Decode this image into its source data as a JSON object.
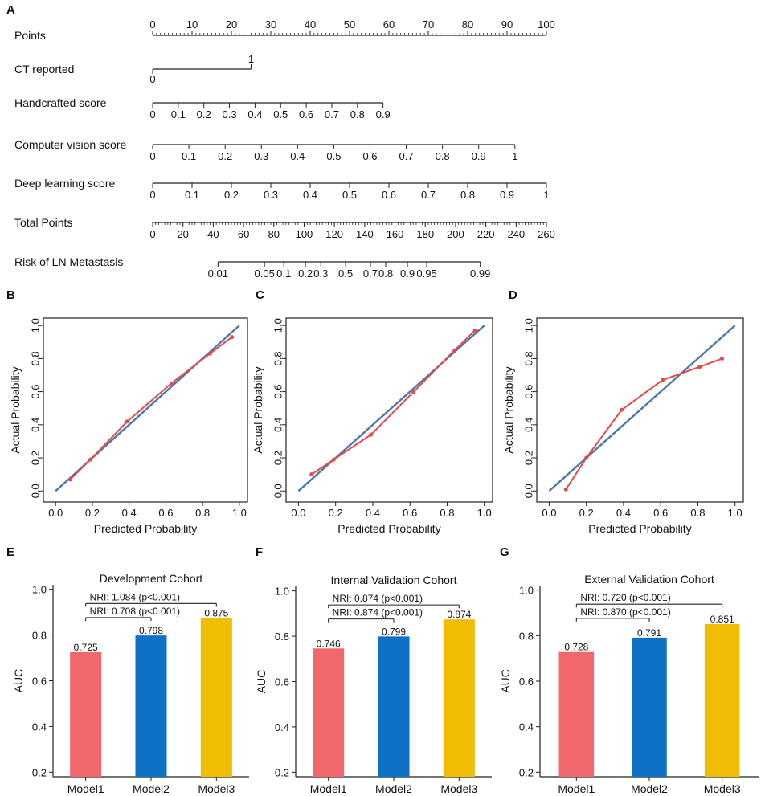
{
  "colors": {
    "calibration_line": "#e8474c",
    "diagonal_line": "#4a78ae",
    "model1": "#f0686b",
    "model2": "#0d72c5",
    "model3": "#f0bd05",
    "axis": "#222222"
  },
  "chart_data": [
    {
      "panel": "A",
      "type": "nomogram",
      "rows": [
        {
          "label": "Points",
          "ticks": [
            "0",
            "10",
            "20",
            "30",
            "40",
            "50",
            "60",
            "70",
            "80",
            "90",
            "100"
          ],
          "tick_values": [
            0,
            10,
            20,
            30,
            40,
            50,
            60,
            70,
            80,
            90,
            100
          ],
          "minor_step": 1
        },
        {
          "label": "CT reported",
          "ticks": [
            "0",
            "1"
          ],
          "tick_values": [
            0,
            25
          ],
          "step_style": true
        },
        {
          "label": "Handcrafted score",
          "ticks": [
            "0",
            "0.1",
            "0.2",
            "0.3",
            "0.4",
            "0.5",
            "0.6",
            "0.7",
            "0.8",
            "0.9"
          ],
          "tick_values": [
            0,
            6.5,
            13,
            19.5,
            26,
            32.5,
            39,
            45.5,
            52,
            58.5
          ]
        },
        {
          "label": "Computer vision score",
          "ticks": [
            "0",
            "0.1",
            "0.2",
            "0.3",
            "0.4",
            "0.5",
            "0.6",
            "0.7",
            "0.8",
            "0.9",
            "1"
          ],
          "tick_values": [
            0,
            9.2,
            18.4,
            27.6,
            36.8,
            46,
            55.2,
            64.4,
            73.6,
            82.8,
            92
          ]
        },
        {
          "label": "Deep learning score",
          "ticks": [
            "0",
            "0.1",
            "0.2",
            "0.3",
            "0.4",
            "0.5",
            "0.6",
            "0.7",
            "0.8",
            "0.9",
            "1"
          ],
          "tick_values": [
            0,
            10,
            20,
            30,
            40,
            50,
            60,
            70,
            80,
            90,
            100
          ]
        },
        {
          "label": "Total Points",
          "ticks": [
            "0",
            "20",
            "40",
            "60",
            "80",
            "100",
            "120",
            "140",
            "160",
            "180",
            "200",
            "220",
            "240",
            "260"
          ],
          "tick_values": [
            0,
            7.69,
            15.38,
            23.08,
            30.77,
            38.46,
            46.15,
            53.85,
            61.54,
            69.23,
            76.92,
            84.62,
            92.31,
            100
          ],
          "minor_step": 1
        },
        {
          "label": "Risk of LN Metastasis",
          "ticks": [
            "0.01",
            "0.05",
            "0.1",
            "0.2",
            "0.3",
            "0.5",
            "0.7",
            "0.8",
            "0.9",
            "0.95",
            "0.99"
          ],
          "tick_values": [
            16.6,
            28.4,
            33.3,
            38.8,
            42.7,
            49.0,
            55.3,
            59.2,
            64.7,
            69.6,
            83.2
          ]
        }
      ]
    },
    {
      "panel": "B",
      "type": "line",
      "xlabel": "Predicted  Probability",
      "ylabel": "Actual Probability",
      "xlim": [
        0,
        1
      ],
      "ylim": [
        0,
        1
      ],
      "xticks": [
        "0.0",
        "0.2",
        "0.4",
        "0.6",
        "0.8",
        "1.0"
      ],
      "yticks": [
        "0.0",
        "0.2",
        "0.4",
        "0.6",
        "0.8",
        "1.0"
      ],
      "series": [
        {
          "name": "calibration",
          "x": [
            0.08,
            0.19,
            0.39,
            0.63,
            0.84,
            0.96
          ],
          "y": [
            0.07,
            0.19,
            0.42,
            0.65,
            0.83,
            0.93
          ]
        },
        {
          "name": "ideal",
          "x": [
            0,
            1
          ],
          "y": [
            0,
            1
          ]
        }
      ]
    },
    {
      "panel": "C",
      "type": "line",
      "xlabel": "Predicted  Probability",
      "ylabel": "Actual Probability",
      "xlim": [
        0,
        1
      ],
      "ylim": [
        0,
        1
      ],
      "xticks": [
        "0.0",
        "0.2",
        "0.4",
        "0.6",
        "0.8",
        "1.0"
      ],
      "yticks": [
        "0.0",
        "0.2",
        "0.4",
        "0.6",
        "0.8",
        "1.0"
      ],
      "series": [
        {
          "name": "calibration",
          "x": [
            0.07,
            0.19,
            0.39,
            0.62,
            0.84,
            0.95
          ],
          "y": [
            0.1,
            0.19,
            0.34,
            0.6,
            0.85,
            0.97
          ]
        },
        {
          "name": "ideal",
          "x": [
            0,
            1
          ],
          "y": [
            0,
            1
          ]
        }
      ]
    },
    {
      "panel": "D",
      "type": "line",
      "xlabel": "Predicted  Probability",
      "ylabel": "Actual Probability",
      "xlim": [
        0,
        1
      ],
      "ylim": [
        0,
        1
      ],
      "xticks": [
        "0.0",
        "0.2",
        "0.4",
        "0.6",
        "0.8",
        "1.0"
      ],
      "yticks": [
        "0.0",
        "0.2",
        "0.4",
        "0.6",
        "0.8",
        "1.0"
      ],
      "series": [
        {
          "name": "calibration",
          "x": [
            0.09,
            0.2,
            0.39,
            0.61,
            0.81,
            0.93
          ],
          "y": [
            0.01,
            0.2,
            0.49,
            0.67,
            0.75,
            0.8
          ]
        },
        {
          "name": "ideal",
          "x": [
            0,
            1
          ],
          "y": [
            0,
            1
          ]
        }
      ]
    },
    {
      "panel": "E",
      "type": "bar",
      "title": "Development Cohort",
      "ylabel": "AUC",
      "categories": [
        "Model1",
        "Model2",
        "Model3"
      ],
      "values": [
        0.725,
        0.798,
        0.875
      ],
      "value_labels": [
        "0.725",
        "0.798",
        "0.875"
      ],
      "ylim": [
        0.18,
        1.02
      ],
      "yticks": [
        "0.2",
        "0.4",
        "0.6",
        "0.8",
        "1.0"
      ],
      "annotations": [
        {
          "text": "NRI: 1.084 (p<0.001)",
          "from": 0,
          "to": 2
        },
        {
          "text": "NRI: 0.708 (p<0.001)",
          "from": 0,
          "to": 1
        }
      ]
    },
    {
      "panel": "F",
      "type": "bar",
      "title": "Internal Validation Cohort",
      "ylabel": "AUC",
      "categories": [
        "Model1",
        "Model2",
        "Model3"
      ],
      "values": [
        0.746,
        0.799,
        0.874
      ],
      "value_labels": [
        "0.746",
        "0.799",
        "0.874"
      ],
      "ylim": [
        0.18,
        1.02
      ],
      "yticks": [
        "0.2",
        "0.4",
        "0.6",
        "0.8",
        "1.0"
      ],
      "annotations": [
        {
          "text": "NRI: 0.874 (p<0.001)",
          "from": 0,
          "to": 2
        },
        {
          "text": "NRI: 0.874 (p<0.001)",
          "from": 0,
          "to": 1
        }
      ]
    },
    {
      "panel": "G",
      "type": "bar",
      "title": "External Validation Cohort",
      "ylabel": "AUC",
      "categories": [
        "Model1",
        "Model2",
        "Model3"
      ],
      "values": [
        0.728,
        0.791,
        0.851
      ],
      "value_labels": [
        "0.728",
        "0.791",
        "0.851"
      ],
      "ylim": [
        0.18,
        1.02
      ],
      "yticks": [
        "0.2",
        "0.4",
        "0.6",
        "0.8",
        "1.0"
      ],
      "annotations": [
        {
          "text": "NRI: 0.720 (p<0.001)",
          "from": 0,
          "to": 2
        },
        {
          "text": "NRI: 0.870 (p<0.001)",
          "from": 0,
          "to": 1
        }
      ]
    }
  ]
}
